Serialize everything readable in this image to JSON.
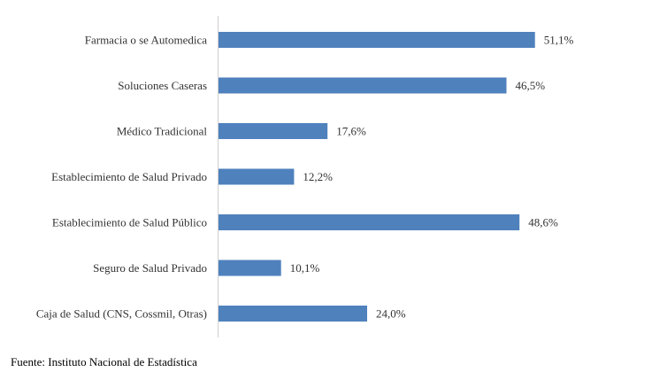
{
  "chart_data": {
    "type": "bar",
    "orientation": "horizontal",
    "categories": [
      "Farmacia o se Automedica",
      "Soluciones Caseras",
      "Médico Tradicional",
      "Establecimiento de Salud Privado",
      "Establecimiento de Salud Público",
      "Seguro de Salud Privado",
      "Caja de Salud (CNS, Cossmil, Otras)"
    ],
    "values": [
      51.1,
      46.5,
      17.6,
      12.2,
      48.6,
      10.1,
      24.0
    ],
    "value_labels": [
      "51,1%",
      "46,5%",
      "17,6%",
      "12,2%",
      "48,6%",
      "10,1%",
      "24,0%"
    ],
    "bar_color": "#4f81bd",
    "xlim": [
      0,
      55
    ],
    "grid": false,
    "legend": "none"
  },
  "source": "Fuente: Instituto Nacional de Estadística"
}
